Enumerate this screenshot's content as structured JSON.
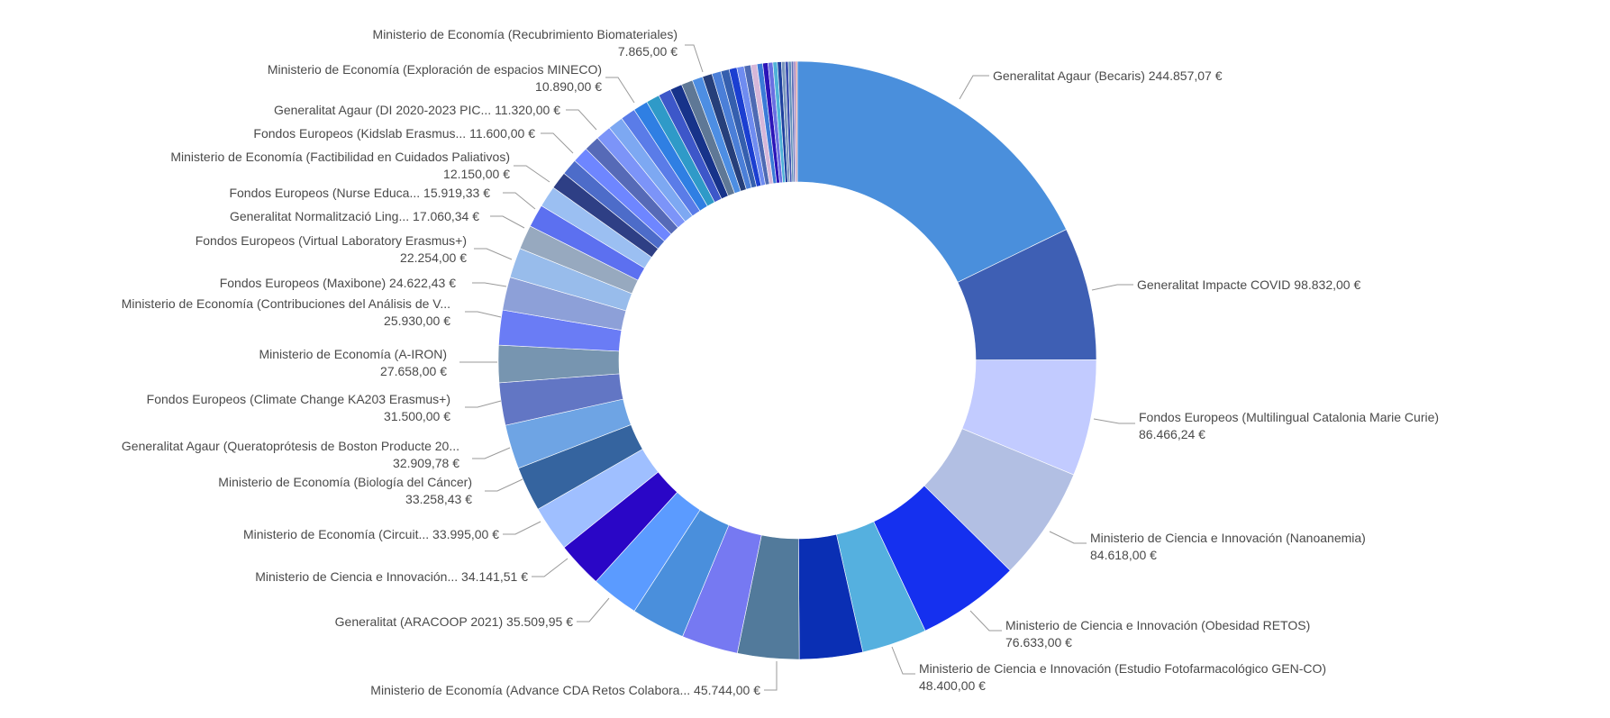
{
  "chart_data": {
    "type": "pie",
    "variant": "donut",
    "currency_suffix": " €",
    "slices": [
      {
        "label": "Generalitat Agaur (Becaris)",
        "value": 244857.07,
        "value_label": "244.857,07 €",
        "color": "#4a8fdc"
      },
      {
        "label": "Generalitat Impacte COVID",
        "value": 98832.0,
        "value_label": "98.832,00 €",
        "color": "#3e5fb4"
      },
      {
        "label": "Fondos Europeos (Multilingual Catalonia Marie Curie)",
        "value": 86466.24,
        "value_label": "86.466,24 €",
        "color": "#c2cbff"
      },
      {
        "label": "Ministerio de Ciencia e Innovación (Nanoanemia)",
        "value": 84618.0,
        "value_label": "84.618,00 €",
        "color": "#b2bfe3"
      },
      {
        "label": "Ministerio de Ciencia e Innovación (Obesidad RETOS)",
        "value": 76633.0,
        "value_label": "76.633,00 €",
        "color": "#1530ef"
      },
      {
        "label": "Ministerio de Ciencia e Innovación (Estudio Fotofarmacológico GEN-CO)",
        "value": 48400.0,
        "value_label": "48.400,00 €",
        "color": "#55b0df"
      },
      {
        "label": "",
        "value": 47000,
        "value_label": "",
        "color": "#0a2fb4"
      },
      {
        "label": "Ministerio de Economía (Advance CDA Retos Colabora...",
        "value": 45744.0,
        "value_label": "45.744,00 €",
        "color": "#527a9b"
      },
      {
        "label": "",
        "value": 42000,
        "value_label": "",
        "color": "#7679f2"
      },
      {
        "label": "",
        "value": 40000,
        "value_label": "",
        "color": "#4a8fdc"
      },
      {
        "label": "Generalitat (ARACOOP 2021)",
        "value": 35509.95,
        "value_label": "35.509,95 €",
        "color": "#5b9bff"
      },
      {
        "label": "Ministerio de Ciencia e Innovación...",
        "value": 34141.51,
        "value_label": "34.141,51 €",
        "color": "#2a06c6"
      },
      {
        "label": "Ministerio de Economía (Circuit...",
        "value": 33995.0,
        "value_label": "33.995,00 €",
        "color": "#9fbfff"
      },
      {
        "label": "Ministerio de Economía (Biología del Cáncer)",
        "value": 33258.43,
        "value_label": "33.258,43 €",
        "color": "#35649f"
      },
      {
        "label": "Generalitat Agaur (Queratoprótesis de Boston Producte 20...",
        "value": 32909.78,
        "value_label": "32.909,78 €",
        "color": "#6ea4e4"
      },
      {
        "label": "Fondos Europeos (Climate Change KA203 Erasmus+)",
        "value": 31500.0,
        "value_label": "31.500,00 €",
        "color": "#6276c4"
      },
      {
        "label": "Ministerio de Economía (A-IRON)",
        "value": 27658.0,
        "value_label": "27.658,00 €",
        "color": "#7795b0"
      },
      {
        "label": "Ministerio de Economía (Contribuciones del Análisis de V...",
        "value": 25930.0,
        "value_label": "25.930,00 €",
        "color": "#6a7cf5"
      },
      {
        "label": "Fondos Europeos (Maxibone)",
        "value": 24622.43,
        "value_label": "24.622,43 €",
        "color": "#8da0d8"
      },
      {
        "label": "Fondos Europeos (Virtual Laboratory Erasmus+)",
        "value": 22254.0,
        "value_label": "22.254,00 €",
        "color": "#98bceb"
      },
      {
        "label": "",
        "value": 18000,
        "value_label": "",
        "color": "#97a9bf"
      },
      {
        "label": "Generalitat Normalització Ling...",
        "value": 17060.34,
        "value_label": "17.060,34 €",
        "color": "#5c70f0"
      },
      {
        "label": "Fondos Europeos (Nurse Educa...",
        "value": 15919.33,
        "value_label": "15.919,33 €",
        "color": "#9bbff2"
      },
      {
        "label": "",
        "value": 13000,
        "value_label": "",
        "color": "#2e3f85"
      },
      {
        "label": "Ministerio de Economía (Factibilidad en Cuidados Paliativos)",
        "value": 12150.0,
        "value_label": "12.150,00 €",
        "color": "#4d6cc9"
      },
      {
        "label": "",
        "value": 12000,
        "value_label": "",
        "color": "#6e86ff"
      },
      {
        "label": "Fondos Europeos (Kidslab Erasmus...",
        "value": 11600.0,
        "value_label": "11.600,00 €",
        "color": "#566ab7"
      },
      {
        "label": "",
        "value": 11500,
        "value_label": "",
        "color": "#7c94f8"
      },
      {
        "label": "Generalitat Agaur (DI 2020-2023 PIC...",
        "value": 11320.0,
        "value_label": "11.320,00 €",
        "color": "#7da8f2"
      },
      {
        "label": "",
        "value": 11100,
        "value_label": "",
        "color": "#5a7ce8"
      },
      {
        "label": "Ministerio de Economía (Exploración de espacios MINECO)",
        "value": 10890.0,
        "value_label": "10.890,00 €",
        "color": "#2f7fe3"
      },
      {
        "label": "",
        "value": 10000,
        "value_label": "",
        "color": "#2f9ac8"
      },
      {
        "label": "",
        "value": 9500,
        "value_label": "",
        "color": "#3d57c9"
      },
      {
        "label": "",
        "value": 9000,
        "value_label": "",
        "color": "#17338a"
      },
      {
        "label": "",
        "value": 8500,
        "value_label": "",
        "color": "#5f7896"
      },
      {
        "label": "Ministerio de Economía (Recubrimiento Biomateriales)",
        "value": 7865.0,
        "value_label": "7.865,00 €",
        "color": "#4d8ee3"
      },
      {
        "label": "",
        "value": 7200,
        "value_label": "",
        "color": "#263f7a"
      },
      {
        "label": "",
        "value": 6800,
        "value_label": "",
        "color": "#4b7fd8"
      },
      {
        "label": "",
        "value": 6200,
        "value_label": "",
        "color": "#355fae"
      },
      {
        "label": "",
        "value": 5800,
        "value_label": "",
        "color": "#1b3fd1"
      },
      {
        "label": "",
        "value": 5400,
        "value_label": "",
        "color": "#6f8cf0"
      },
      {
        "label": "",
        "value": 5000,
        "value_label": "",
        "color": "#4e6ab3"
      },
      {
        "label": "",
        "value": 4600,
        "value_label": "",
        "color": "#d6b7d9"
      },
      {
        "label": "",
        "value": 4200,
        "value_label": "",
        "color": "#3b7bd8"
      },
      {
        "label": "",
        "value": 3900,
        "value_label": "",
        "color": "#2b14b8"
      },
      {
        "label": "",
        "value": 3600,
        "value_label": "",
        "color": "#6a6fe2"
      },
      {
        "label": "",
        "value": 3300,
        "value_label": "",
        "color": "#4fb2d8"
      },
      {
        "label": "",
        "value": 3000,
        "value_label": "",
        "color": "#1d3f9e"
      },
      {
        "label": "",
        "value": 2700,
        "value_label": "",
        "color": "#7a96bd"
      },
      {
        "label": "",
        "value": 2400,
        "value_label": "",
        "color": "#3a4fb0"
      },
      {
        "label": "",
        "value": 2100,
        "value_label": "",
        "color": "#6190b8"
      },
      {
        "label": "",
        "value": 1800,
        "value_label": "",
        "color": "#5e6fb8"
      },
      {
        "label": "",
        "value": 1500,
        "value_label": "",
        "color": "#9f7bbd"
      },
      {
        "label": "",
        "value": 1200,
        "value_label": "",
        "color": "#d68a8a"
      }
    ]
  }
}
